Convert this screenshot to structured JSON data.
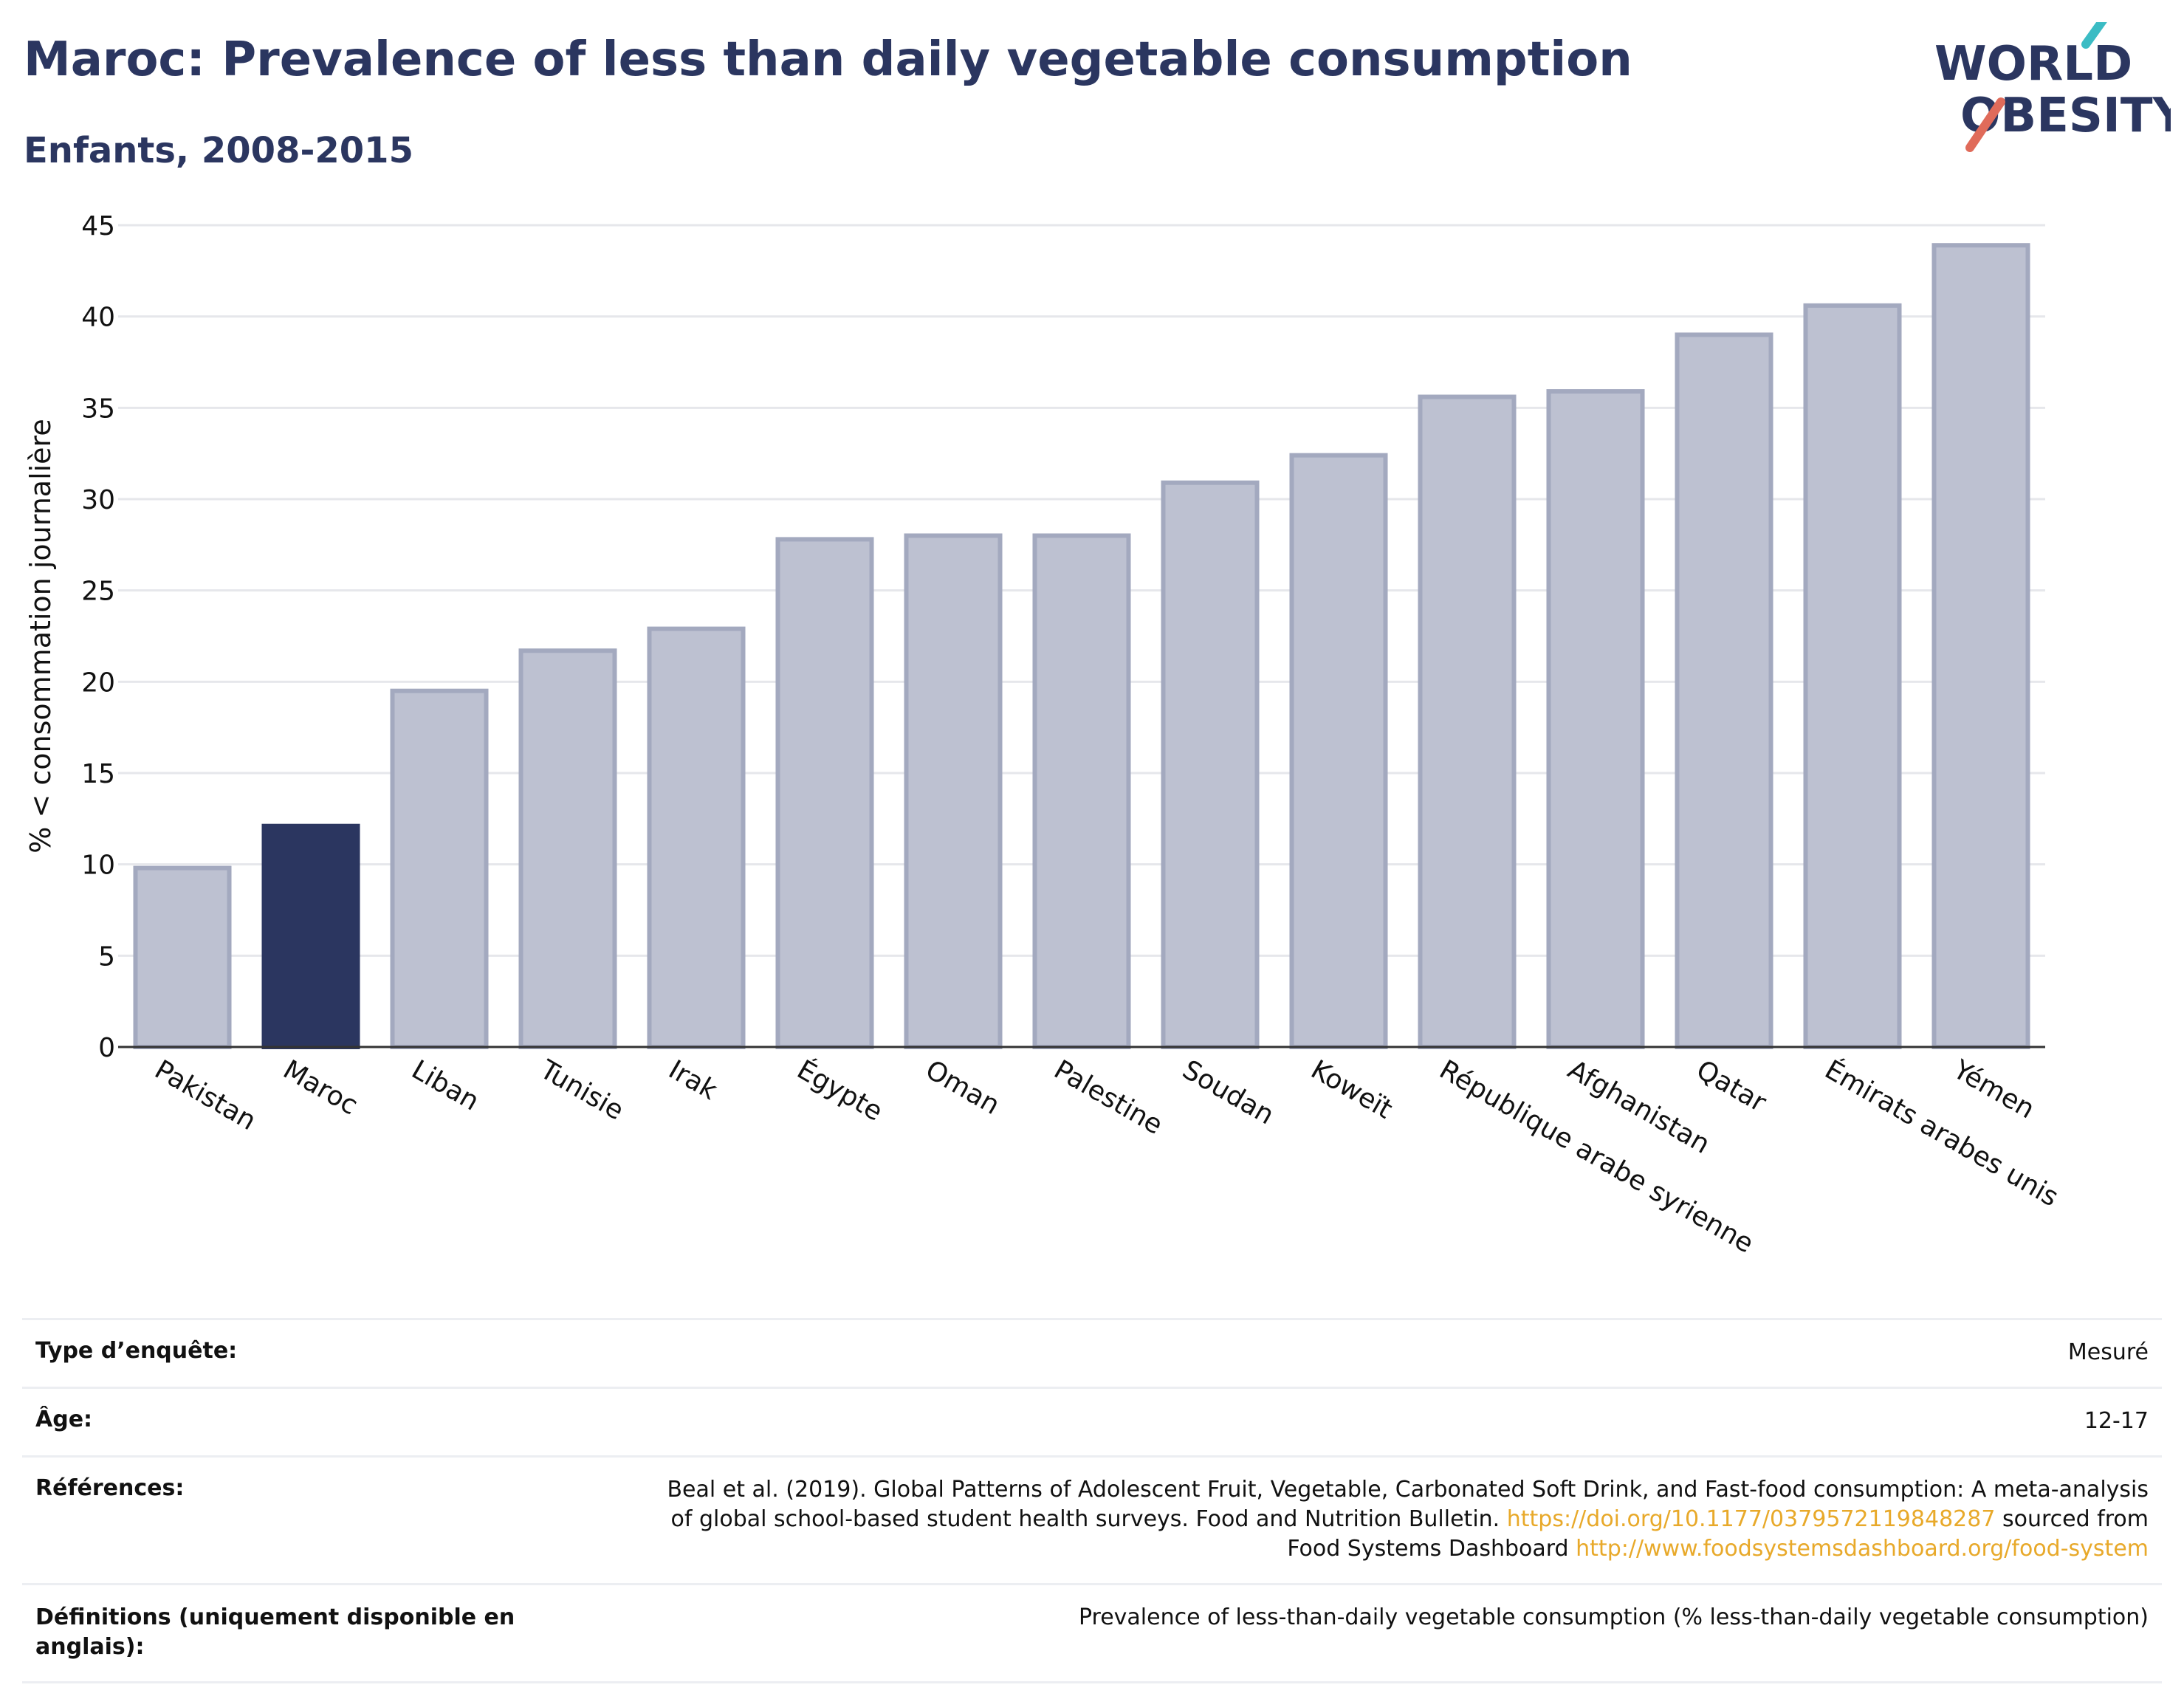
{
  "header": {
    "title": "Maroc: Prevalence of less than daily vegetable consumption",
    "subtitle": "Enfants, 2008-2015"
  },
  "logo": {
    "line1": "WORLD",
    "line2": "OBESITY",
    "icon": "world-obesity-logo"
  },
  "chart_data": {
    "type": "bar",
    "ylabel": "% < consommation journalière",
    "xlabel": "",
    "ylim": [
      0,
      45
    ],
    "yticks": [
      0,
      5,
      10,
      15,
      20,
      25,
      30,
      35,
      40,
      45
    ],
    "grid": true,
    "categories": [
      "Pakistan",
      "Maroc",
      "Liban",
      "Tunisie",
      "Irak",
      "Égypte",
      "Oman",
      "Palestine",
      "Soudan",
      "Koweït",
      "République arabe syrienne",
      "Afghanistan",
      "Qatar",
      "Émirats arabes unis",
      "Yémen"
    ],
    "values": [
      9.8,
      12.1,
      19.5,
      21.7,
      22.9,
      27.8,
      28.0,
      28.0,
      30.9,
      32.4,
      35.6,
      35.9,
      39.0,
      40.6,
      43.9
    ],
    "highlight": "Maroc",
    "colors": {
      "highlight": "#2b3660",
      "bar_fill": "#bdc1d1",
      "bar_stroke": "#a3a9bf"
    }
  },
  "info": {
    "survey_type": {
      "label": "Type d’enquête:",
      "value": "Mesuré"
    },
    "age": {
      "label": "Âge:",
      "value": "12-17"
    },
    "references": {
      "label": "Références:",
      "line1": "Beal et al. (2019). Global Patterns of Adolescent Fruit, Vegetable, Carbonated Soft Drink, and Fast-food consumption: A meta-analysis",
      "line2_text": "of global school-based student health surveys. Food and Nutrition Bulletin.",
      "doi_link": "https://doi.org/10.1177/0379572119848287",
      "line2_suffix": "sourced from",
      "line3_text": "Food Systems Dashboard",
      "dashboard_link": "http://www.foodsystemsdashboard.org/food-system"
    },
    "definitions": {
      "label": "Définitions (uniquement disponible en anglais):",
      "value": "Prevalence of less-than-daily vegetable consumption (% less-than-daily vegetable consumption)"
    }
  }
}
